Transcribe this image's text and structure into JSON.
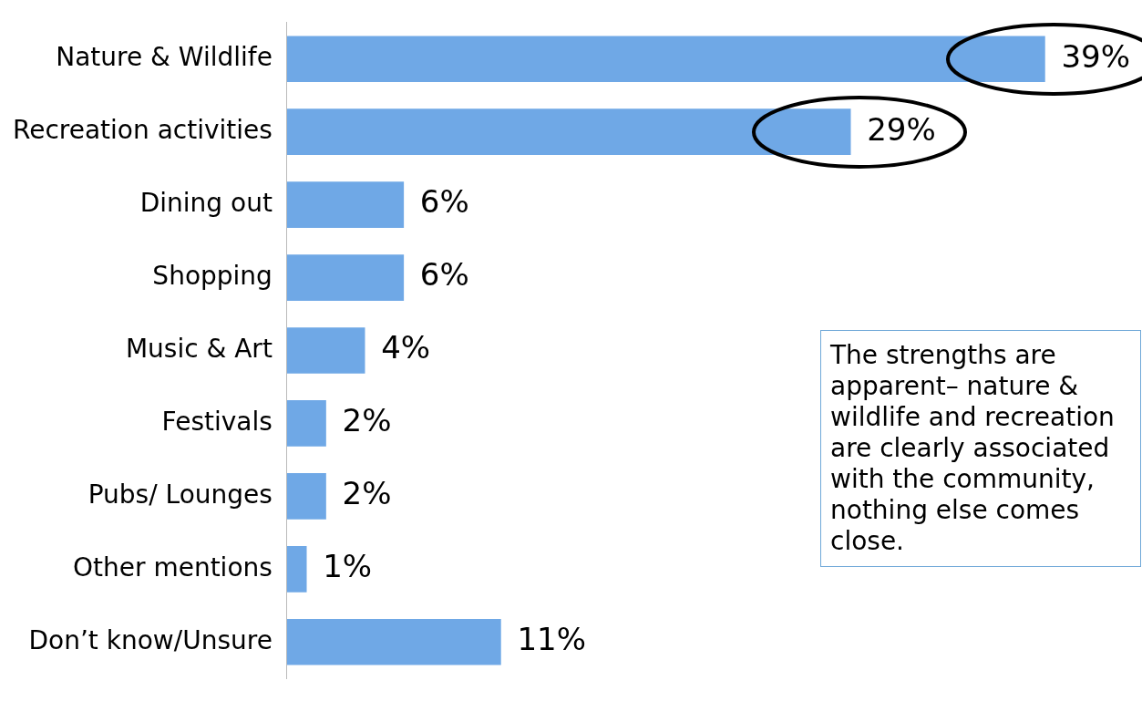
{
  "chart_data": {
    "type": "bar",
    "orientation": "horizontal",
    "categories": [
      "Nature & Wildlife",
      "Recreation activities",
      "Dining out",
      "Shopping",
      "Music & Art",
      "Festivals",
      "Pubs/ Lounges",
      "Other mentions",
      "Don’t know/Unsure"
    ],
    "values": [
      39,
      29,
      6,
      6,
      4,
      2,
      2,
      1,
      11
    ],
    "color": "#6fa8e6",
    "xlim": [
      0,
      44
    ],
    "value_labels": [
      "39%",
      "29%",
      "6%",
      "6%",
      "4%",
      "2%",
      "2%",
      "1%",
      "11%"
    ],
    "annotations": [
      "The strengths are apparent– nature & wildlife and recreation are clearly associated with the community, nothing else comes close."
    ]
  }
}
